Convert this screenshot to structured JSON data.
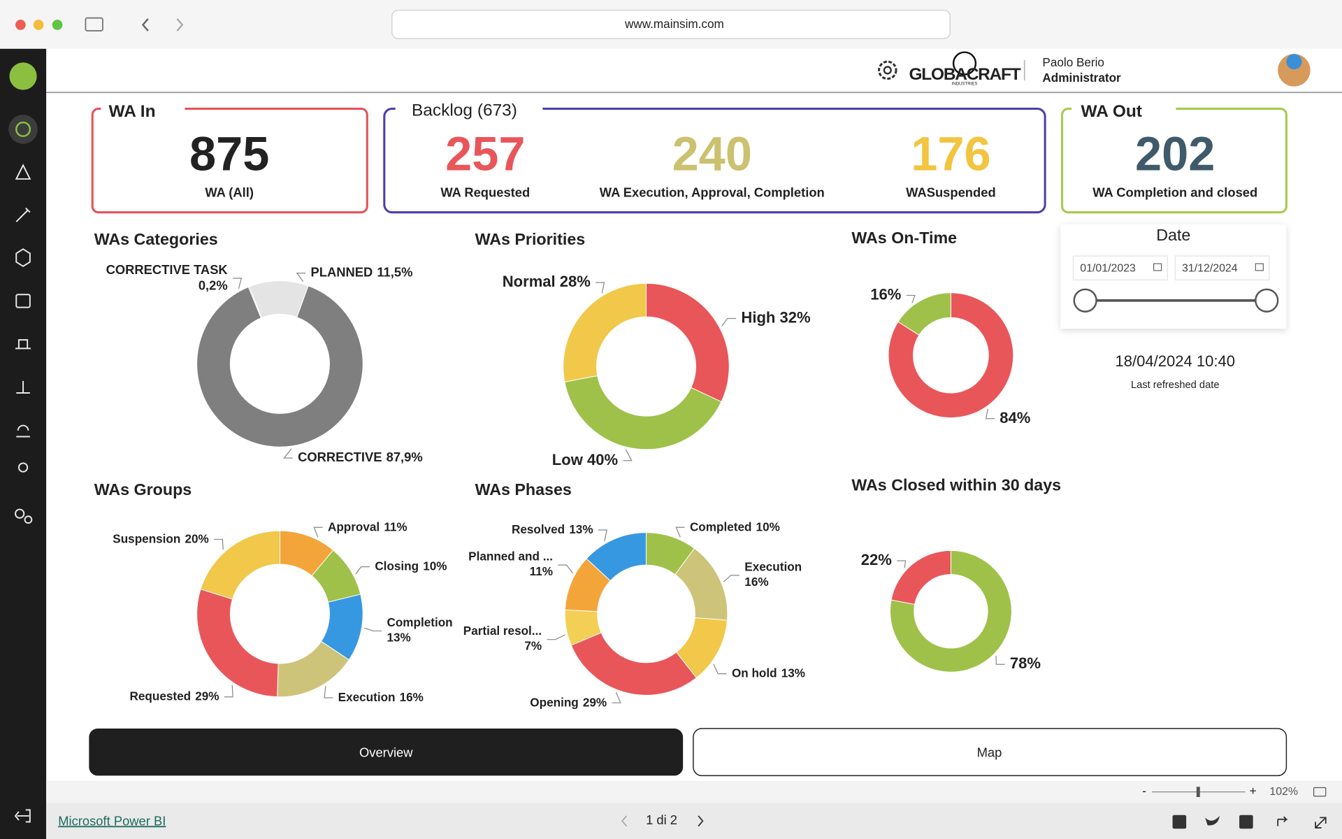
{
  "browser": {
    "url": "www.mainsim.com"
  },
  "header": {
    "logo": "GLOBACRAFT",
    "logo_sub": "INDUSTRIES",
    "user_name": "Paolo Berio",
    "user_role": "Administrator"
  },
  "kpis": {
    "wa_in": {
      "title": "WA In",
      "value": 875,
      "label": "WA (All)"
    },
    "backlog": {
      "title": "Backlog (673)",
      "items": [
        {
          "value": 257,
          "label": "WA Requested",
          "color": "#e9565a"
        },
        {
          "value": 240,
          "label": "WA Execution, Approval, Completion",
          "color": "#cbc16f"
        },
        {
          "value": 176,
          "label": "WASuspended",
          "color": "#f2c43f"
        }
      ]
    },
    "wa_out": {
      "title": "WA Out",
      "value": 202,
      "label": "WA Completion and closed"
    }
  },
  "charts": [
    {
      "type": "donut",
      "title": "WAs Categories",
      "slices": [
        {
          "name": "CORRECTIVE",
          "value": 87.9,
          "value_label": "87,9%",
          "color": "#7f7f7f"
        },
        {
          "name": "CORRECTIVE TASK",
          "value": 0.2,
          "value_label": "0,2%",
          "color": "#b0b0b0"
        },
        {
          "name": "PLANNED",
          "value": 11.5,
          "value_label": "11,5%",
          "color": "#e4e4e4"
        }
      ]
    },
    {
      "type": "donut",
      "title": "WAs Priorities",
      "slices": [
        {
          "name": "High",
          "value": 32,
          "value_label": "32%",
          "color": "#e9565a"
        },
        {
          "name": "Low",
          "value": 40,
          "value_label": "40%",
          "color": "#9fc14a"
        },
        {
          "name": "Normal",
          "value": 28,
          "value_label": "28%",
          "color": "#f1c84a"
        }
      ]
    },
    {
      "type": "donut",
      "title": "WAs On-Time",
      "slices": [
        {
          "value": 84,
          "value_label": "84%",
          "color": "#e9565a"
        },
        {
          "value": 16,
          "value_label": "16%",
          "color": "#9fc14a"
        }
      ]
    },
    {
      "type": "donut",
      "title": "WAs Groups",
      "slices": [
        {
          "name": "Approval",
          "value": 11,
          "value_label": "11%",
          "color": "#f4a53a"
        },
        {
          "name": "Closing",
          "value": 10,
          "value_label": "10%",
          "color": "#9fc14a"
        },
        {
          "name": "Completion",
          "value": 13,
          "value_label": "13%",
          "color": "#3798e2"
        },
        {
          "name": "Execution",
          "value": 16,
          "value_label": "16%",
          "color": "#cdc47a"
        },
        {
          "name": "Requested",
          "value": 29,
          "value_label": "29%",
          "color": "#e9565a"
        },
        {
          "name": "Suspension",
          "value": 20,
          "value_label": "20%",
          "color": "#f1c84a"
        }
      ]
    },
    {
      "type": "donut",
      "title": "WAs Phases",
      "slices": [
        {
          "name": "Completed",
          "value": 10,
          "value_label": "10%",
          "color": "#9fc14a"
        },
        {
          "name": "Execution",
          "value": 16,
          "value_label": "16%",
          "color": "#cdc47a"
        },
        {
          "name": "On hold",
          "value": 13,
          "value_label": "13%",
          "color": "#f1c84a"
        },
        {
          "name": "Opening",
          "value": 29,
          "value_label": "29%",
          "color": "#e9565a"
        },
        {
          "name": "Partial resol...",
          "value": 7,
          "value_label": "7%",
          "color": "#f3cf55"
        },
        {
          "name": "Planned and ...",
          "value": 11,
          "value_label": "11%",
          "color": "#f4a53a"
        },
        {
          "name": "Resolved",
          "value": 13,
          "value_label": "13%",
          "color": "#3798e2"
        }
      ]
    },
    {
      "type": "donut",
      "title": "WAs Closed within 30 days",
      "slices": [
        {
          "value": 78,
          "value_label": "78%",
          "color": "#9fc14a"
        },
        {
          "value": 22,
          "value_label": "22%",
          "color": "#e9565a"
        }
      ]
    }
  ],
  "date_filter": {
    "title": "Date",
    "start": "01/01/2023",
    "end": "31/12/2024"
  },
  "refresh": {
    "value": "18/04/2024 10:40",
    "label": "Last refreshed date"
  },
  "tabs": [
    "Overview",
    "Map"
  ],
  "status_bar": {
    "zoom_out": "-",
    "zoom_in": "+",
    "zoom": "102%"
  },
  "footer": {
    "brand": "Microsoft Power BI",
    "page": "1 di 2"
  }
}
